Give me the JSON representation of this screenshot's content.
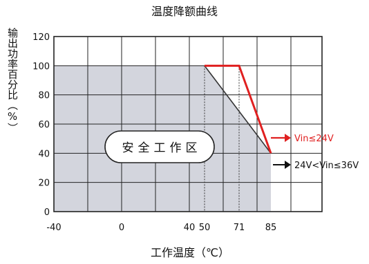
{
  "chart_data": {
    "type": "line",
    "title": "温度降额曲线",
    "xlabel": "工作温度（℃）",
    "ylabel": "输出功率百分比（%）",
    "ylim": [
      0,
      120
    ],
    "yticks": [
      0,
      20,
      40,
      60,
      80,
      100,
      120
    ],
    "xticks": [
      "-40",
      "0",
      "40",
      "50",
      "71",
      "85"
    ],
    "grid": true,
    "safe_zone_label": "安全工作区",
    "safe_zone_color": "#d3d5dd",
    "series": [
      {
        "name": "Vin≤24V",
        "color": "#e02020",
        "points": [
          [
            50,
            100
          ],
          [
            71,
            100
          ],
          [
            85,
            40
          ]
        ]
      },
      {
        "name": "24V<Vin≤36V",
        "color": "#333333",
        "points": [
          [
            50,
            100
          ],
          [
            85,
            40
          ]
        ]
      }
    ],
    "safe_zone_points": [
      [
        -40,
        0
      ],
      [
        -40,
        100
      ],
      [
        50,
        100
      ],
      [
        85,
        40
      ],
      [
        85,
        0
      ]
    ]
  }
}
